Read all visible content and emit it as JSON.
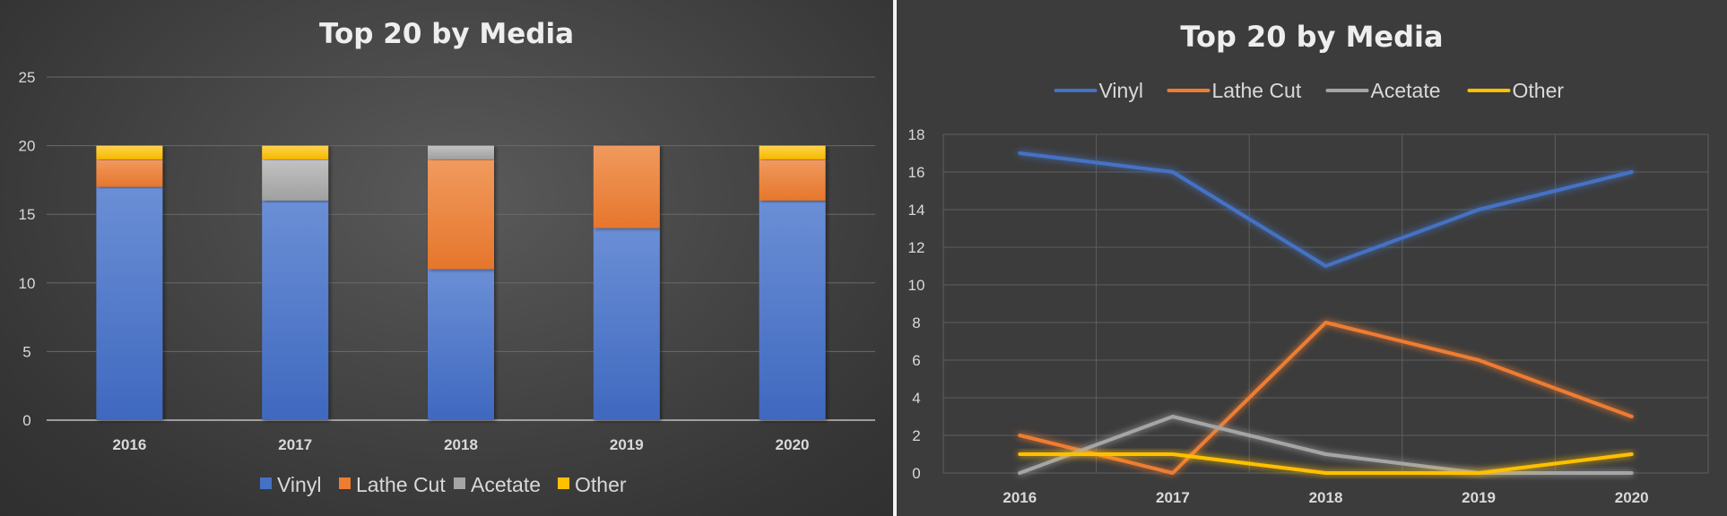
{
  "chart_data": [
    {
      "type": "bar",
      "stacked": true,
      "title": "Top 20 by Media",
      "categories": [
        "2016",
        "2017",
        "2018",
        "2019",
        "2020"
      ],
      "series": [
        {
          "name": "Vinyl",
          "values": [
            17,
            16,
            11,
            14,
            16
          ]
        },
        {
          "name": "Lathe Cut",
          "values": [
            2,
            0,
            8,
            6,
            3
          ]
        },
        {
          "name": "Acetate",
          "values": [
            0,
            3,
            1,
            0,
            0
          ]
        },
        {
          "name": "Other",
          "values": [
            1,
            1,
            0,
            0,
            1
          ]
        }
      ],
      "ylim": [
        0,
        25
      ],
      "yticks": [
        "0",
        "5",
        "10",
        "15",
        "20",
        "25"
      ],
      "xlabel": "",
      "ylabel": "",
      "grid": true,
      "legend_position": "bottom"
    },
    {
      "type": "line",
      "title": "Top 20 by Media",
      "categories": [
        "2016",
        "2017",
        "2018",
        "2019",
        "2020"
      ],
      "series": [
        {
          "name": "Vinyl",
          "values": [
            17,
            16,
            11,
            14,
            16
          ]
        },
        {
          "name": "Lathe Cut",
          "values": [
            2,
            0,
            8,
            6,
            3
          ]
        },
        {
          "name": "Acetate",
          "values": [
            0,
            3,
            1,
            0,
            0
          ]
        },
        {
          "name": "Other",
          "values": [
            1,
            1,
            0,
            0,
            1
          ]
        }
      ],
      "ylim": [
        0,
        18
      ],
      "yticks": [
        "0",
        "2",
        "4",
        "6",
        "8",
        "10",
        "12",
        "14",
        "16",
        "18"
      ],
      "xlabel": "",
      "ylabel": "",
      "grid": true,
      "legend_position": "top"
    }
  ],
  "colors": {
    "Vinyl": "#4472c4",
    "Lathe Cut": "#ed7d31",
    "Acetate": "#a5a5a5",
    "Other": "#ffc000"
  }
}
